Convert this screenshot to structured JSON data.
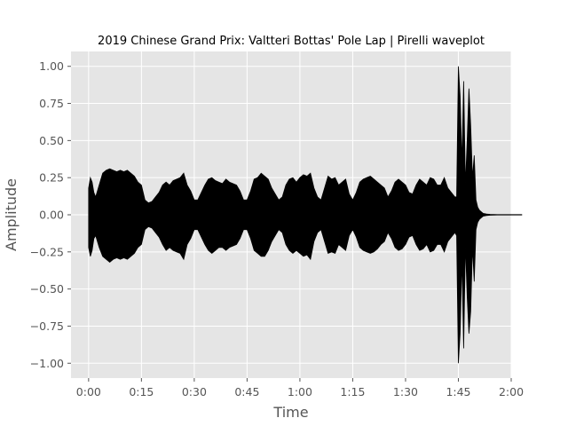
{
  "chart_data": {
    "type": "area",
    "title": "2019 Chinese Grand Prix: Valtteri Bottas' Pole Lap | Pirelli waveplot",
    "xlabel": "Time",
    "ylabel": "Amplitude",
    "x_unit": "seconds",
    "xlim": [
      -5,
      120
    ],
    "ylim": [
      -1.1,
      1.1
    ],
    "grid": true,
    "x_ticks": [
      {
        "value": 0,
        "label": "0:00"
      },
      {
        "value": 15,
        "label": "0:15"
      },
      {
        "value": 30,
        "label": "0:30"
      },
      {
        "value": 45,
        "label": "0:45"
      },
      {
        "value": 60,
        "label": "1:00"
      },
      {
        "value": 75,
        "label": "1:15"
      },
      {
        "value": 90,
        "label": "1:30"
      },
      {
        "value": 105,
        "label": "1:45"
      },
      {
        "value": 120,
        "label": "2:00"
      }
    ],
    "y_ticks": [
      {
        "value": 1.0,
        "label": "1.00"
      },
      {
        "value": 0.75,
        "label": "0.75"
      },
      {
        "value": 0.5,
        "label": "0.50"
      },
      {
        "value": 0.25,
        "label": "0.25"
      },
      {
        "value": 0.0,
        "label": "0.00"
      },
      {
        "value": -0.25,
        "label": "−0.25"
      },
      {
        "value": -0.5,
        "label": "−0.50"
      },
      {
        "value": -0.75,
        "label": "−0.75"
      },
      {
        "value": -1.0,
        "label": "−1.00"
      }
    ],
    "series": [
      {
        "color": "#000000",
        "x": [
          0,
          0.5,
          1,
          1.5,
          2,
          3,
          4,
          5,
          6,
          7,
          8,
          9,
          10,
          11,
          12,
          13,
          14,
          15,
          16,
          17,
          18,
          19,
          20,
          21,
          22,
          23,
          24,
          25,
          26,
          27,
          28,
          29,
          30,
          31,
          32,
          33,
          34,
          35,
          36,
          37,
          38,
          39,
          40,
          41,
          42,
          43,
          44,
          45,
          46,
          47,
          48,
          49,
          50,
          51,
          52,
          53,
          54,
          55,
          56,
          57,
          58,
          59,
          60,
          61,
          62,
          63,
          64,
          65,
          66,
          67,
          68,
          69,
          70,
          71,
          72,
          73,
          74,
          75,
          76,
          77,
          78,
          79,
          80,
          81,
          82,
          83,
          84,
          85,
          86,
          87,
          88,
          89,
          90,
          91,
          92,
          93,
          94,
          95,
          96,
          97,
          98,
          99,
          100,
          101,
          102,
          103,
          104,
          104.5,
          105,
          105.5,
          106,
          106.5,
          107,
          107.5,
          108,
          108.5,
          109,
          109.5,
          110,
          110.5,
          111,
          111.5,
          112,
          113,
          114,
          115,
          116,
          117,
          118,
          119,
          120,
          121,
          122,
          123
        ],
        "upper": [
          0.18,
          0.25,
          0.22,
          0.15,
          0.12,
          0.2,
          0.28,
          0.3,
          0.31,
          0.3,
          0.29,
          0.3,
          0.29,
          0.3,
          0.28,
          0.26,
          0.22,
          0.2,
          0.1,
          0.08,
          0.09,
          0.12,
          0.15,
          0.2,
          0.22,
          0.2,
          0.23,
          0.24,
          0.25,
          0.28,
          0.2,
          0.16,
          0.1,
          0.1,
          0.15,
          0.2,
          0.24,
          0.25,
          0.23,
          0.22,
          0.21,
          0.24,
          0.22,
          0.21,
          0.2,
          0.16,
          0.1,
          0.1,
          0.16,
          0.24,
          0.25,
          0.28,
          0.26,
          0.24,
          0.18,
          0.14,
          0.1,
          0.12,
          0.2,
          0.24,
          0.25,
          0.22,
          0.25,
          0.27,
          0.26,
          0.28,
          0.18,
          0.12,
          0.1,
          0.18,
          0.26,
          0.24,
          0.25,
          0.2,
          0.22,
          0.24,
          0.14,
          0.1,
          0.15,
          0.22,
          0.24,
          0.25,
          0.26,
          0.24,
          0.22,
          0.2,
          0.18,
          0.12,
          0.16,
          0.22,
          0.24,
          0.22,
          0.2,
          0.15,
          0.14,
          0.2,
          0.24,
          0.22,
          0.2,
          0.25,
          0.24,
          0.2,
          0.2,
          0.25,
          0.18,
          0.15,
          0.12,
          0.12,
          1.0,
          0.8,
          0.35,
          0.9,
          0.2,
          0.5,
          0.85,
          0.6,
          0.25,
          0.4,
          0.1,
          0.05,
          0.03,
          0.02,
          0.01,
          0.005,
          0.003,
          0.002,
          0.001,
          0.001,
          0.001,
          0.001,
          0.001,
          0.001,
          0.001,
          0.001
        ],
        "lower": [
          -0.22,
          -0.28,
          -0.24,
          -0.16,
          -0.14,
          -0.22,
          -0.28,
          -0.3,
          -0.32,
          -0.3,
          -0.29,
          -0.3,
          -0.29,
          -0.3,
          -0.28,
          -0.26,
          -0.22,
          -0.2,
          -0.1,
          -0.08,
          -0.09,
          -0.12,
          -0.15,
          -0.2,
          -0.24,
          -0.22,
          -0.24,
          -0.25,
          -0.26,
          -0.3,
          -0.2,
          -0.16,
          -0.1,
          -0.1,
          -0.15,
          -0.2,
          -0.24,
          -0.26,
          -0.24,
          -0.22,
          -0.22,
          -0.24,
          -0.22,
          -0.21,
          -0.2,
          -0.16,
          -0.1,
          -0.1,
          -0.16,
          -0.24,
          -0.26,
          -0.28,
          -0.28,
          -0.24,
          -0.18,
          -0.14,
          -0.1,
          -0.12,
          -0.2,
          -0.24,
          -0.26,
          -0.24,
          -0.26,
          -0.28,
          -0.27,
          -0.3,
          -0.18,
          -0.12,
          -0.1,
          -0.18,
          -0.26,
          -0.25,
          -0.26,
          -0.2,
          -0.22,
          -0.24,
          -0.14,
          -0.1,
          -0.15,
          -0.22,
          -0.24,
          -0.25,
          -0.26,
          -0.25,
          -0.23,
          -0.2,
          -0.18,
          -0.12,
          -0.16,
          -0.22,
          -0.24,
          -0.23,
          -0.2,
          -0.15,
          -0.14,
          -0.2,
          -0.24,
          -0.23,
          -0.2,
          -0.25,
          -0.24,
          -0.2,
          -0.2,
          -0.25,
          -0.18,
          -0.15,
          -0.12,
          -0.14,
          -1.0,
          -0.8,
          -0.3,
          -0.9,
          -0.2,
          -0.55,
          -0.8,
          -0.65,
          -0.22,
          -0.45,
          -0.1,
          -0.05,
          -0.03,
          -0.02,
          -0.01,
          -0.005,
          -0.003,
          -0.002,
          -0.001,
          -0.001,
          -0.001,
          -0.001,
          -0.001,
          -0.001,
          -0.001,
          -0.001
        ]
      }
    ]
  }
}
